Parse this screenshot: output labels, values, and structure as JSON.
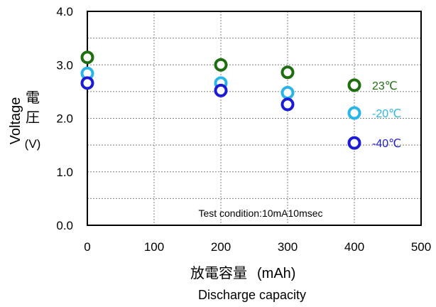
{
  "chart_data": {
    "type": "scatter",
    "x_label_cjk": "放電容量",
    "x_label_unit": "(mAh)",
    "x_label_en": "Discharge capacity",
    "y_label_cjk": "電圧",
    "y_label_en": "Voltage",
    "y_label_unit": "(V)",
    "xlim": [
      0,
      500
    ],
    "ylim": [
      0.0,
      4.0
    ],
    "x_ticks": [
      "0",
      "100",
      "200",
      "300",
      "400",
      "500"
    ],
    "y_ticks": [
      "0.0",
      "1.0",
      "2.0",
      "3.0",
      "4.0"
    ],
    "x_tick_values": [
      0,
      100,
      200,
      300,
      400,
      500
    ],
    "y_tick_values": [
      0,
      1,
      2,
      3,
      4
    ],
    "grid": true,
    "legend_placement": "right, inside plot",
    "annotation": "Test condition:10mA10msec",
    "series": [
      {
        "name": "23℃",
        "color": "#1e6e10",
        "x": [
          0,
          200,
          300,
          400
        ],
        "y": [
          3.14,
          3.0,
          2.86,
          2.62
        ]
      },
      {
        "name": "-20℃",
        "color": "#2bb5e6",
        "x": [
          0,
          200,
          300,
          400
        ],
        "y": [
          2.84,
          2.66,
          2.48,
          2.1
        ]
      },
      {
        "name": "-40℃",
        "color": "#1b1bd6",
        "x": [
          0,
          200,
          300,
          400
        ],
        "y": [
          2.66,
          2.52,
          2.26,
          1.54
        ]
      }
    ]
  }
}
